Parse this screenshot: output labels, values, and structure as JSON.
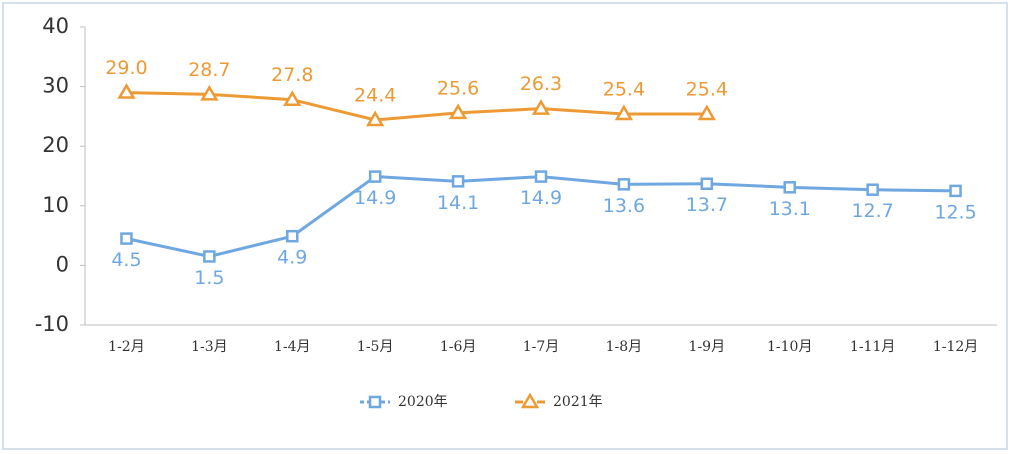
{
  "chart_data": {
    "type": "line",
    "categories": [
      "1-2月",
      "1-3月",
      "1-4月",
      "1-5月",
      "1-6月",
      "1-7月",
      "1-8月",
      "1-9月",
      "1-10月",
      "1-11月",
      "1-12月"
    ],
    "series": [
      {
        "name": "2020年",
        "color": "#6fa8e0",
        "marker": "square",
        "values": [
          4.5,
          1.5,
          4.9,
          14.9,
          14.1,
          14.9,
          13.6,
          13.7,
          13.1,
          12.7,
          12.5
        ],
        "value_labels": [
          "4.5",
          "1.5",
          "4.9",
          "14.9",
          "14.1",
          "14.9",
          "13.6",
          "13.7",
          "13.1",
          "12.7",
          "12.5"
        ]
      },
      {
        "name": "2021年",
        "color": "#ee9a34",
        "marker": "triangle",
        "values": [
          29,
          28.7,
          27.8,
          24.4,
          25.6,
          26.3,
          25.4,
          25.4,
          null,
          null,
          null
        ],
        "value_labels": [
          "29.0",
          "28.7",
          "27.8",
          "24.4",
          "25.6",
          "26.3",
          "25.4",
          "25.4",
          null,
          null,
          null
        ]
      }
    ],
    "ylim": [
      -10,
      40
    ],
    "yticks": [
      -10,
      0,
      10,
      20,
      30,
      40
    ],
    "legend": "bottom"
  }
}
